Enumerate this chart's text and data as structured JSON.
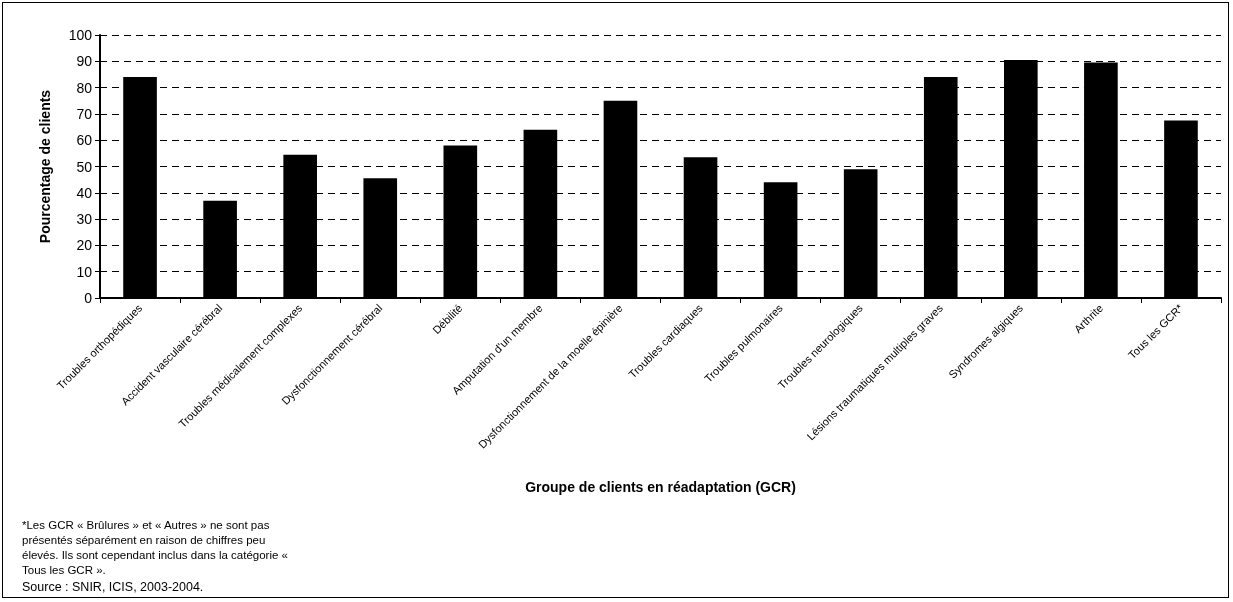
{
  "chart_data": {
    "type": "bar",
    "xlabel": "Groupe de clients en réadaptation (GCR)",
    "ylabel": "Pourcentage de clients",
    "categories": [
      "Troubles orthopédiques",
      "Accident vasculaire cérébral",
      "Troubles médicalement complexes",
      "Dysfonctionnement cérébral",
      "Débilité",
      "Amputation d'un membre",
      "Dysfonctionnement de la moelle épinière",
      "Troubles cardiaques",
      "Troubles pulmonaires",
      "Troubles neurologiques",
      "Lésions traumatiques multiples graves",
      "Syndromes algiques",
      "Arthrite",
      "Tous les GCR*"
    ],
    "values": [
      84,
      37,
      54.5,
      45.5,
      58,
      64,
      75,
      53.5,
      44,
      49,
      84,
      90.5,
      89.5,
      67.5
    ],
    "color": "#000000",
    "ylim": [
      0,
      100
    ],
    "yticks": [
      0,
      10,
      20,
      30,
      40,
      50,
      60,
      70,
      80,
      90,
      100
    ],
    "grid": "y",
    "annotations": [
      "*Les GCR « Brûlures » et « Autres » ne sont pas présentés séparément en raison de chiffres peu élevés. Ils sont cependant inclus dans la catégorie « Tous les GCR ».",
      "Source : SNIR, ICIS, 2003-2004."
    ]
  }
}
